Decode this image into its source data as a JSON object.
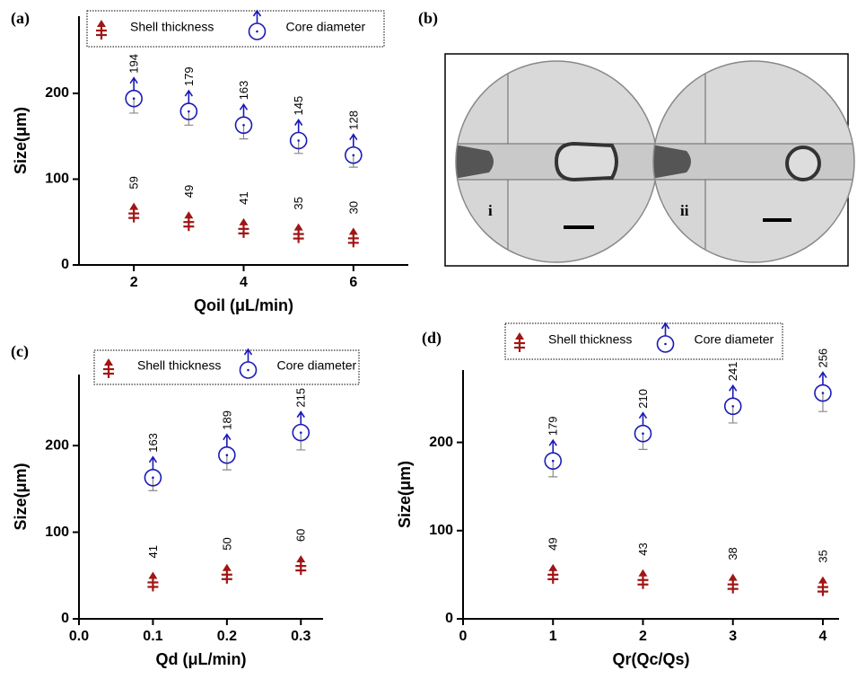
{
  "chart_data": [
    {
      "type": "scatter",
      "panel_label": "(a)",
      "x_label": "Qoil (μL/min)",
      "y_label": "Size(μm)",
      "x": [
        2,
        3,
        4,
        5,
        6
      ],
      "xlim": [
        1,
        7
      ],
      "xticks": [
        2,
        4,
        6
      ],
      "ylim": [
        0,
        290
      ],
      "yticks": [
        0,
        100,
        200
      ],
      "series": [
        {
          "name": "Shell thickness",
          "color": "#a01515",
          "marker": "shell",
          "values": [
            59,
            49,
            41,
            35,
            30
          ]
        },
        {
          "name": "Core diameter",
          "color": "#1a1ab8",
          "marker": "core",
          "values": [
            194,
            179,
            163,
            145,
            128
          ],
          "errors": [
            17,
            16,
            16,
            15,
            14
          ]
        }
      ]
    },
    {
      "type": "scatter",
      "panel_label": "(c)",
      "x_label": "Qd (μL/min)",
      "y_label": "Size(μm)",
      "x": [
        0.1,
        0.2,
        0.3
      ],
      "xlim": [
        0,
        0.33
      ],
      "xticks": [
        {
          "value": 0,
          "label": "0.0"
        },
        0.1,
        0.2,
        0.3
      ],
      "ylim": [
        0,
        282
      ],
      "yticks": [
        0,
        100,
        200
      ],
      "series": [
        {
          "name": "Shell thickness",
          "color": "#a01515",
          "marker": "shell",
          "values": [
            41,
            50,
            60
          ]
        },
        {
          "name": "Core diameter",
          "color": "#1a1ab8",
          "marker": "core",
          "values": [
            163,
            189,
            215
          ],
          "errors": [
            15,
            17,
            20
          ]
        }
      ]
    },
    {
      "type": "scatter",
      "panel_label": "(d)",
      "x_label": "Qr(Qc/Qs)",
      "y_label": "Size(μm)",
      "x": [
        1,
        2,
        3,
        4
      ],
      "xlim": [
        0,
        4.18
      ],
      "xticks": [
        0,
        1,
        2,
        3,
        4
      ],
      "ylim": [
        0,
        282
      ],
      "yticks": [
        0,
        100,
        200
      ],
      "series": [
        {
          "name": "Shell thickness",
          "color": "#a01515",
          "marker": "shell",
          "values": [
            49,
            43,
            38,
            35
          ]
        },
        {
          "name": "Core diameter",
          "color": "#1a1ab8",
          "marker": "core",
          "values": [
            179,
            210,
            241,
            256
          ],
          "errors": [
            18,
            18,
            19,
            21
          ]
        }
      ]
    }
  ],
  "image_panel": {
    "panel_label": "(b)",
    "left_label": "i",
    "right_label": "ii"
  }
}
